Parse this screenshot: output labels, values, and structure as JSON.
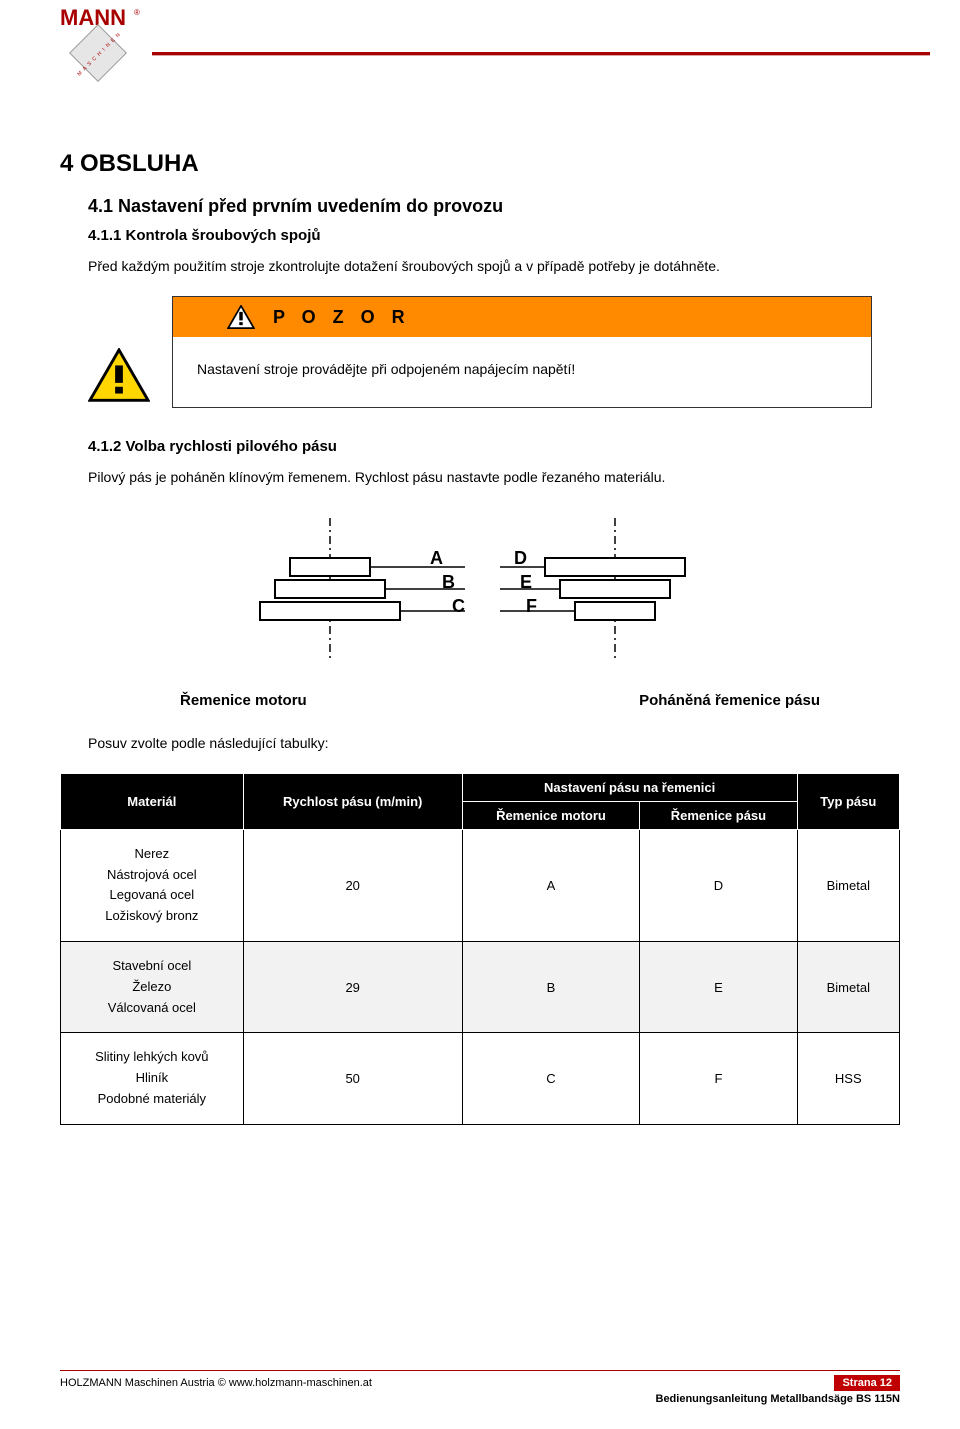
{
  "brand": {
    "name_top": "MANN",
    "reg": "®",
    "name_bottom": "HOLZ",
    "tag": "MASCHINEN"
  },
  "headings": {
    "h1": "4 OBSLUHA",
    "h2": "4.1 Nastavení před prvním uvedením do provozu",
    "h3a": "4.1.1 Kontrola šroubových spojů",
    "h3b": "4.1.2 Volba rychlosti pilového pásu"
  },
  "paras": {
    "p1": "Před každým použitím stroje zkontrolujte dotažení šroubových spojů a v případě potřeby je dotáhněte.",
    "p2": "Pilový pás je poháněn klínovým řemenem. Rychlost pásu nastavte podle řezaného materiálu.",
    "p3": "Posuv zvolte podle následující tabulky:"
  },
  "warning": {
    "title": "P O Z O R",
    "body": "Nastavení stroje provádějte při odpojeném napájecím napětí!"
  },
  "diagram_labels": {
    "left": "Řemenice motoru",
    "right": "Poháněná řemenice pásu",
    "A": "A",
    "B": "B",
    "C": "C",
    "D": "D",
    "E": "E",
    "F": "F"
  },
  "table": {
    "header": {
      "material": "Materiál",
      "speed": "Rychlost pásu (m/min)",
      "setting": "Nastavení pásu na řemenici",
      "motor": "Řemenice motoru",
      "driven": "Řemenice pásu",
      "type": "Typ pásu"
    },
    "rows": [
      {
        "materials": [
          "Nerez",
          "Nástrojová ocel",
          "Legovaná ocel",
          "Ložiskový bronz"
        ],
        "speed": "20",
        "motor": "A",
        "driven": "D",
        "type": "Bimetal",
        "shade": false
      },
      {
        "materials": [
          "Stavební ocel",
          "Železo",
          "Válcovaná ocel"
        ],
        "speed": "29",
        "motor": "B",
        "driven": "E",
        "type": "Bimetal",
        "shade": true
      },
      {
        "materials": [
          "Slitiny lehkých kovů",
          "Hliník",
          "Podobné materiály"
        ],
        "speed": "50",
        "motor": "C",
        "driven": "F",
        "type": "HSS",
        "shade": false
      }
    ]
  },
  "footer": {
    "left": "HOLZMANN Maschinen Austria  ©  www.holzmann-maschinen.at",
    "page": "Strana 12",
    "sub": "Bedienungsanleitung Metallbandsäge BS 115N"
  },
  "colors": {
    "brand_red": "#a80000",
    "warn_orange": "#ff8a00",
    "page_red": "#c00000"
  }
}
